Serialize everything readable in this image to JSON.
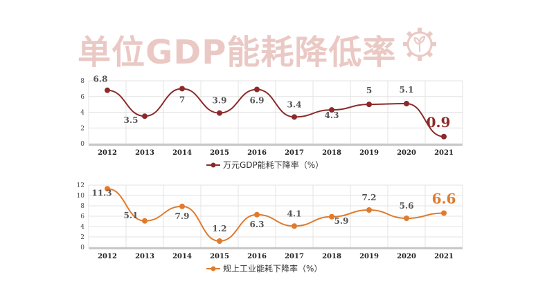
{
  "title": "单位GDP能耗降低率",
  "gear_icon": "gear-with-sprout-icon",
  "chart_data": [
    {
      "type": "line",
      "categories": [
        "2012",
        "2013",
        "2014",
        "2015",
        "2016",
        "2017",
        "2018",
        "2019",
        "2020",
        "2021"
      ],
      "series": [
        {
          "name": "万元GDP能耗下降率（%）",
          "values": [
            6.8,
            3.5,
            7,
            3.9,
            6.9,
            3.4,
            4.3,
            5,
            5.1,
            0.9
          ],
          "color": "#8b2a2a"
        }
      ],
      "data_labels": [
        "6.8",
        "3.5",
        "7",
        "3.9",
        "6.9",
        "3.4",
        "4.3",
        "5",
        "5.1",
        "0.9"
      ],
      "ylim": [
        0,
        8
      ],
      "yticks": [
        "0",
        "2",
        "4",
        "6",
        "8"
      ],
      "grid": true,
      "legend": "bottom",
      "highlight_color": "#8b2a2a"
    },
    {
      "type": "line",
      "categories": [
        "2012",
        "2013",
        "2014",
        "2015",
        "2016",
        "2017",
        "2018",
        "2019",
        "2020",
        "2021"
      ],
      "series": [
        {
          "name": "规上工业能耗下降率（%）",
          "values": [
            11.3,
            5.1,
            7.9,
            1.2,
            6.3,
            4.1,
            5.9,
            7.2,
            5.6,
            6.6
          ],
          "color": "#e07b2e"
        }
      ],
      "data_labels": [
        "11.3",
        "5.1",
        "7.9",
        "1.2",
        "6.3",
        "4.1",
        "5.9",
        "7.2",
        "5.6",
        "6.6"
      ],
      "ylim": [
        0,
        12
      ],
      "yticks": [
        "0",
        "2",
        "4",
        "6",
        "8",
        "10",
        "12"
      ],
      "grid": true,
      "legend": "bottom",
      "highlight_color": "#e07b2e"
    }
  ]
}
